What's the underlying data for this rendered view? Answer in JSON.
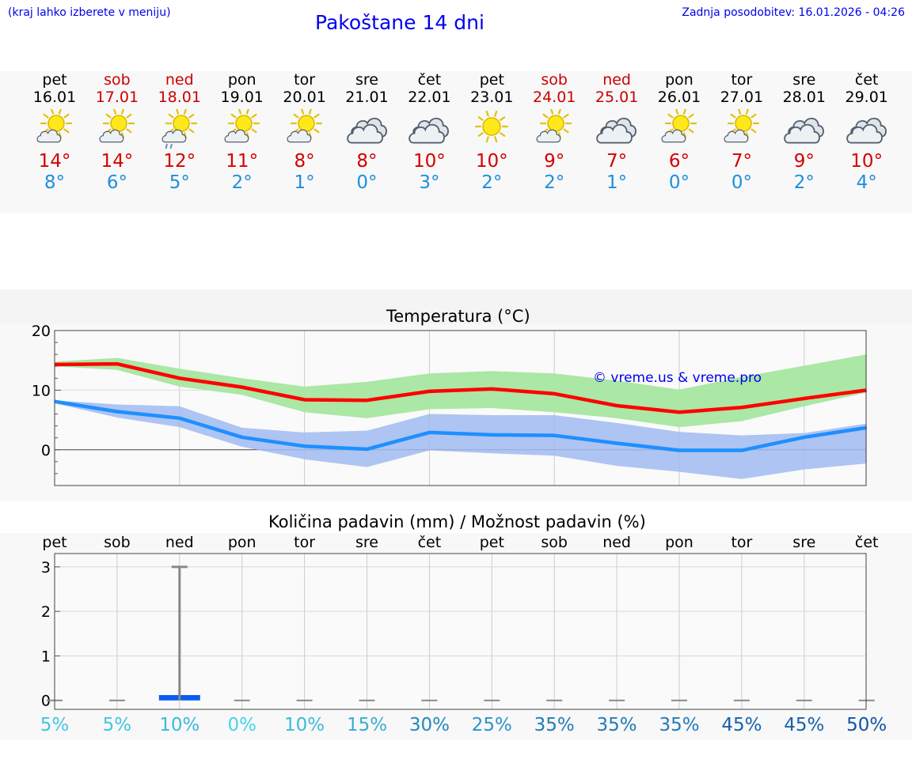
{
  "header": {
    "hint": "(kraj lahko izberete v meniju)",
    "title": "Pakoštane 14 dni",
    "updated": "Zadnja posodobitev: 16.01.2026 - 04:26"
  },
  "colors": {
    "link": "#0000ee",
    "weekend": "#cc0000",
    "tmax_line": "#ff0000",
    "tmin_line": "#1e8fff",
    "tmax_band": "#a6e6a0",
    "tmin_band": "#a0baf0",
    "overlap_band": "#80c8a8",
    "precip_bar": "#0a5cf0",
    "low_chance": "#47d3e8",
    "high_chance": "#1055a5"
  },
  "days": [
    {
      "name": "pet",
      "date": "16.01",
      "weekend": false,
      "icon": "sun-cloud-icon",
      "high": "14°",
      "low": "8°"
    },
    {
      "name": "sob",
      "date": "17.01",
      "weekend": true,
      "icon": "sun-cloud-icon",
      "high": "14°",
      "low": "6°"
    },
    {
      "name": "ned",
      "date": "18.01",
      "weekend": true,
      "icon": "sun-cloud-rain-icon",
      "high": "12°",
      "low": "5°"
    },
    {
      "name": "pon",
      "date": "19.01",
      "weekend": false,
      "icon": "sun-cloud-icon",
      "high": "11°",
      "low": "2°"
    },
    {
      "name": "tor",
      "date": "20.01",
      "weekend": false,
      "icon": "sun-cloud-icon",
      "high": "8°",
      "low": "1°"
    },
    {
      "name": "sre",
      "date": "21.01",
      "weekend": false,
      "icon": "cloud-icon",
      "high": "8°",
      "low": "0°"
    },
    {
      "name": "čet",
      "date": "22.01",
      "weekend": false,
      "icon": "cloud-icon",
      "high": "10°",
      "low": "3°"
    },
    {
      "name": "pet",
      "date": "23.01",
      "weekend": false,
      "icon": "sun-icon",
      "high": "10°",
      "low": "2°"
    },
    {
      "name": "sob",
      "date": "24.01",
      "weekend": true,
      "icon": "sun-cloud-icon",
      "high": "9°",
      "low": "2°"
    },
    {
      "name": "ned",
      "date": "25.01",
      "weekend": true,
      "icon": "cloud-icon",
      "high": "7°",
      "low": "1°"
    },
    {
      "name": "pon",
      "date": "26.01",
      "weekend": false,
      "icon": "sun-cloud-icon",
      "high": "6°",
      "low": "0°"
    },
    {
      "name": "tor",
      "date": "27.01",
      "weekend": false,
      "icon": "sun-cloud-icon",
      "high": "7°",
      "low": "0°"
    },
    {
      "name": "sre",
      "date": "28.01",
      "weekend": false,
      "icon": "cloud-icon",
      "high": "9°",
      "low": "2°"
    },
    {
      "name": "čet",
      "date": "29.01",
      "weekend": false,
      "icon": "cloud-icon",
      "high": "10°",
      "low": "4°"
    }
  ],
  "chart_data": [
    {
      "type": "line",
      "title": "Temperatura (°C)",
      "x": [
        "16.01",
        "17.01",
        "18.01",
        "19.01",
        "20.01",
        "21.01",
        "22.01",
        "23.01",
        "24.01",
        "25.01",
        "26.01",
        "27.01",
        "28.01",
        "29.01"
      ],
      "ylim": [
        -6,
        20
      ],
      "yticks": [
        0,
        10,
        20
      ],
      "watermark": "© vreme.us & vreme.pro",
      "series": [
        {
          "name": "max",
          "values": [
            14.3,
            14.4,
            12.0,
            10.5,
            8.4,
            8.3,
            9.8,
            10.2,
            9.4,
            7.4,
            6.3,
            7.1,
            8.6,
            10.0
          ],
          "band_upper": [
            14.8,
            15.4,
            13.6,
            12.0,
            10.6,
            11.4,
            12.8,
            13.2,
            12.8,
            11.6,
            10.1,
            12.2,
            14.1,
            16.0
          ],
          "band_lower": [
            14.0,
            13.4,
            10.6,
            9.2,
            6.3,
            5.3,
            6.8,
            7.0,
            6.3,
            5.3,
            3.8,
            4.8,
            7.3,
            9.6
          ]
        },
        {
          "name": "min",
          "values": [
            8.1,
            6.4,
            5.3,
            2.1,
            0.6,
            0.1,
            2.9,
            2.5,
            2.4,
            1.1,
            -0.1,
            -0.1,
            2.1,
            3.7
          ],
          "band_upper": [
            8.3,
            7.6,
            7.3,
            3.7,
            2.9,
            3.2,
            6.0,
            5.8,
            5.8,
            4.5,
            3.0,
            2.4,
            2.8,
            4.4
          ],
          "band_lower": [
            7.8,
            5.4,
            3.8,
            0.5,
            -1.6,
            -2.9,
            -0.1,
            -0.6,
            -1.0,
            -2.7,
            -3.7,
            -4.9,
            -3.3,
            -2.3
          ]
        }
      ]
    },
    {
      "type": "bar",
      "title": "Količina padavin (mm) / Možnost padavin (%)",
      "categories": [
        "pet",
        "sob",
        "ned",
        "pon",
        "tor",
        "sre",
        "čet",
        "pet",
        "sob",
        "ned",
        "pon",
        "tor",
        "sre",
        "čet"
      ],
      "values": [
        0,
        0,
        0.12,
        0,
        0,
        0,
        0,
        0,
        0,
        0,
        0,
        0,
        0,
        0
      ],
      "error_max": [
        0,
        0,
        3.0,
        0,
        0,
        0,
        0,
        0,
        0,
        0,
        0,
        0,
        0,
        0
      ],
      "ylim": [
        -0.2,
        3.3
      ],
      "yticks": [
        0,
        1,
        2,
        3
      ],
      "chance": [
        "5%",
        "5%",
        "10%",
        "0%",
        "10%",
        "15%",
        "30%",
        "25%",
        "35%",
        "35%",
        "35%",
        "45%",
        "45%",
        "50%"
      ]
    }
  ]
}
